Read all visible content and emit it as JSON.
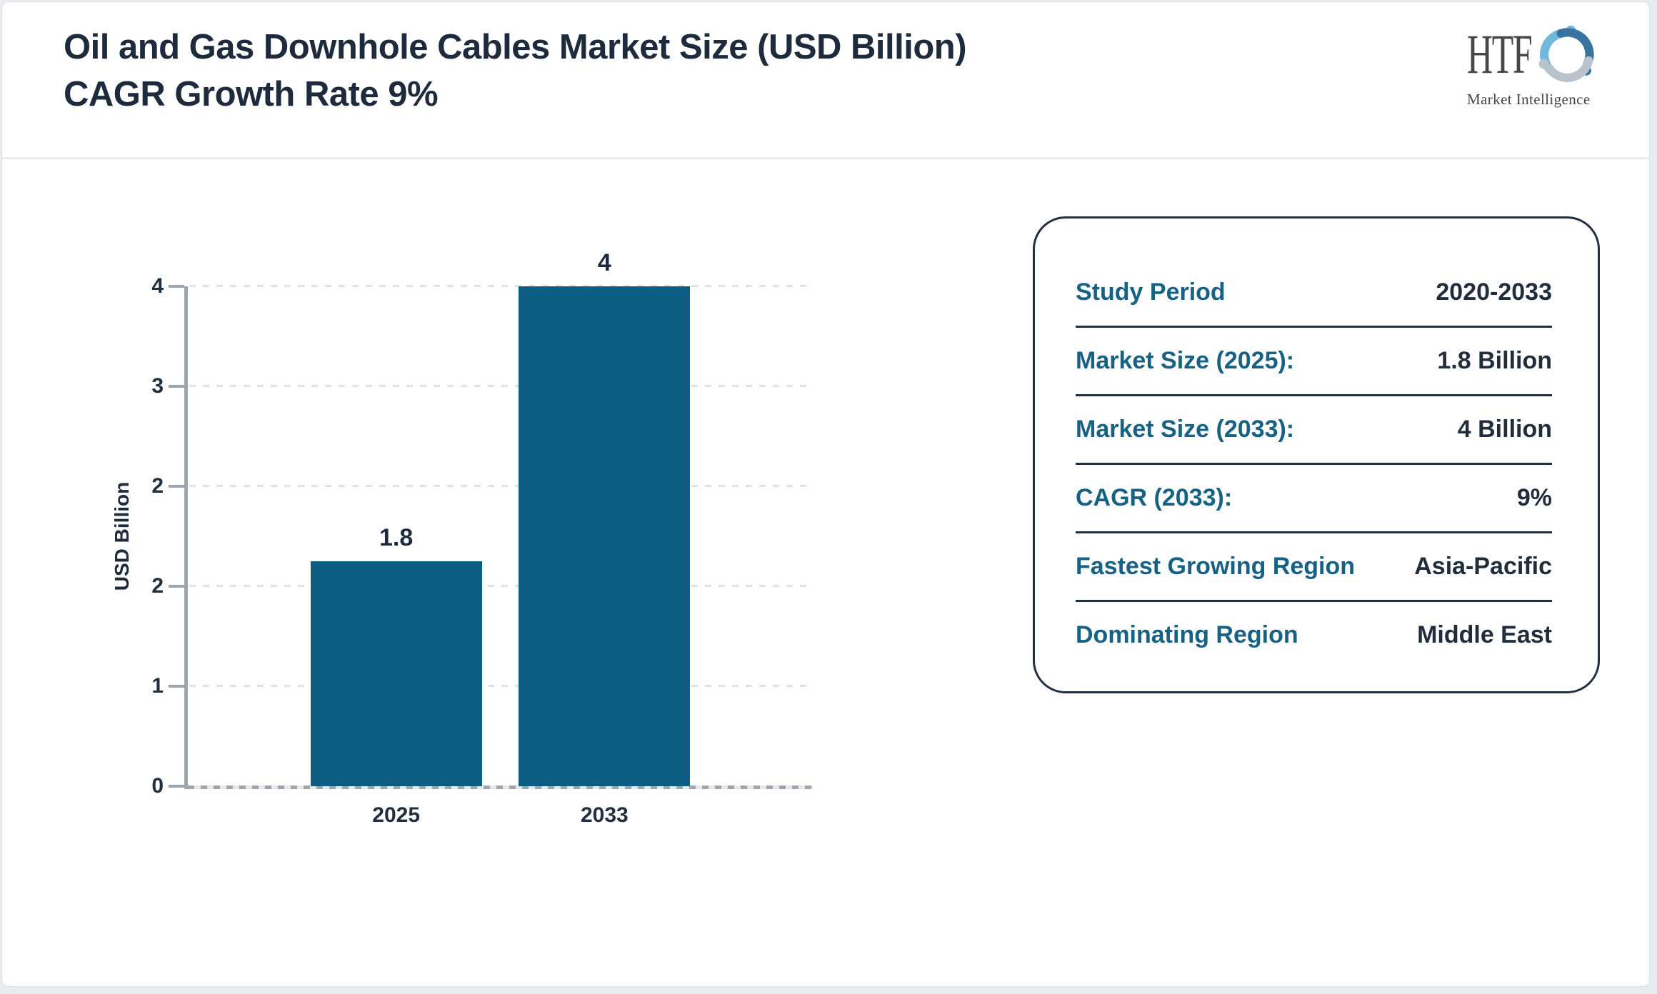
{
  "page": {
    "title": "Oil and Gas Downhole Cables Market Size (USD Billion) CAGR Growth Rate 9%"
  },
  "logo": {
    "text": "HTF",
    "subtext": "Market Intelligence",
    "icon_colors": [
      "#74b7dc",
      "#39749e",
      "#b9c3cb"
    ]
  },
  "chart_data": {
    "type": "bar",
    "title": "",
    "categories": [
      "2025",
      "2033"
    ],
    "values": [
      1.8,
      4
    ],
    "bar_labels": [
      "1.8",
      "4"
    ],
    "xlabel": "",
    "ylabel": "USD Billion",
    "ylim": [
      0,
      4
    ],
    "ytick_labels_bottom_to_top": [
      "0",
      "1",
      "2",
      "2",
      "3",
      "4"
    ],
    "grid": true,
    "legend": false,
    "bar_color": "#0d5c82"
  },
  "info_panel": {
    "rows": [
      {
        "label": "Study Period",
        "value": "2020-2033"
      },
      {
        "label": "Market Size (2025):",
        "value": "1.8 Billion"
      },
      {
        "label": "Market Size (2033):",
        "value": "4 Billion"
      },
      {
        "label": "CAGR (2033):",
        "value": "9%"
      },
      {
        "label": "Fastest Growing Region",
        "value": "Asia-Pacific"
      },
      {
        "label": "Dominating Region",
        "value": "Middle East"
      }
    ]
  },
  "colors": {
    "bar": "#0d5c82",
    "label_teal": "#176284",
    "text_navy": "#1e2b3c",
    "axis_gray": "#9fa5ad",
    "gridline": "#e1e1e1",
    "panel_border": "#22303f",
    "page_background": "#e9ebef"
  }
}
